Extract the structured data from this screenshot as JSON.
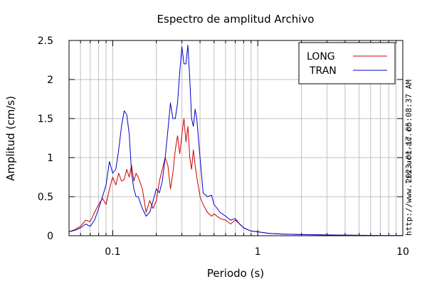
{
  "chart_data": {
    "type": "line",
    "title": "Espectro de amplitud Archivo",
    "xlabel": "Periodo (s)",
    "ylabel": "Amplitud (cm/s)",
    "x_scale": "log",
    "xlim": [
      0.05,
      10
    ],
    "ylim": [
      0,
      2.5
    ],
    "x_ticks": [
      {
        "value": 0.1,
        "label": "0.1"
      },
      {
        "value": 1,
        "label": "1"
      },
      {
        "value": 10,
        "label": "10"
      }
    ],
    "y_ticks": [
      {
        "value": 0,
        "label": "0"
      },
      {
        "value": 0.5,
        "label": "0.5"
      },
      {
        "value": 1,
        "label": "1"
      },
      {
        "value": 1.5,
        "label": "1.5"
      },
      {
        "value": 2,
        "label": "2"
      },
      {
        "value": 2.5,
        "label": "2.5"
      }
    ],
    "grid": true,
    "legend_position": "top-right",
    "series": [
      {
        "name": "LONG",
        "color": "#cc0000",
        "x": [
          0.05,
          0.055,
          0.06,
          0.065,
          0.07,
          0.075,
          0.08,
          0.085,
          0.09,
          0.095,
          0.1,
          0.105,
          0.11,
          0.115,
          0.12,
          0.125,
          0.13,
          0.135,
          0.14,
          0.145,
          0.15,
          0.16,
          0.17,
          0.18,
          0.19,
          0.2,
          0.21,
          0.22,
          0.23,
          0.24,
          0.25,
          0.26,
          0.27,
          0.28,
          0.29,
          0.3,
          0.31,
          0.32,
          0.33,
          0.34,
          0.35,
          0.36,
          0.37,
          0.38,
          0.4,
          0.42,
          0.45,
          0.48,
          0.5,
          0.55,
          0.6,
          0.65,
          0.7,
          0.75,
          0.8,
          0.9,
          1.0,
          1.2,
          1.5,
          2.0,
          3.0,
          5.0,
          7.0,
          10.0
        ],
        "y": [
          0.05,
          0.08,
          0.12,
          0.2,
          0.18,
          0.3,
          0.4,
          0.48,
          0.4,
          0.6,
          0.75,
          0.65,
          0.8,
          0.7,
          0.72,
          0.85,
          0.75,
          0.9,
          0.7,
          0.8,
          0.75,
          0.6,
          0.3,
          0.45,
          0.35,
          0.45,
          0.7,
          0.85,
          1.0,
          0.9,
          0.6,
          0.8,
          1.1,
          1.28,
          1.05,
          1.3,
          1.5,
          1.2,
          1.4,
          1.0,
          0.85,
          1.1,
          0.9,
          0.75,
          0.5,
          0.4,
          0.3,
          0.25,
          0.28,
          0.22,
          0.2,
          0.15,
          0.2,
          0.15,
          0.1,
          0.06,
          0.05,
          0.03,
          0.02,
          0.015,
          0.01,
          0.005,
          0.003,
          0.002
        ]
      },
      {
        "name": "TRAN",
        "color": "#0000cc",
        "x": [
          0.05,
          0.055,
          0.06,
          0.065,
          0.07,
          0.075,
          0.08,
          0.085,
          0.09,
          0.095,
          0.1,
          0.105,
          0.11,
          0.115,
          0.12,
          0.125,
          0.13,
          0.135,
          0.14,
          0.145,
          0.15,
          0.16,
          0.17,
          0.18,
          0.19,
          0.2,
          0.21,
          0.22,
          0.23,
          0.24,
          0.25,
          0.26,
          0.27,
          0.28,
          0.29,
          0.3,
          0.31,
          0.32,
          0.33,
          0.34,
          0.35,
          0.36,
          0.37,
          0.38,
          0.4,
          0.42,
          0.45,
          0.48,
          0.5,
          0.55,
          0.6,
          0.65,
          0.7,
          0.75,
          0.8,
          0.9,
          1.0,
          1.2,
          1.5,
          2.0,
          3.0,
          5.0,
          7.0,
          10.0
        ],
        "y": [
          0.05,
          0.07,
          0.1,
          0.15,
          0.12,
          0.2,
          0.35,
          0.5,
          0.65,
          0.95,
          0.8,
          0.85,
          1.1,
          1.4,
          1.6,
          1.55,
          1.3,
          0.8,
          0.6,
          0.5,
          0.5,
          0.35,
          0.25,
          0.3,
          0.45,
          0.6,
          0.55,
          0.7,
          1.0,
          1.35,
          1.7,
          1.5,
          1.5,
          1.7,
          2.1,
          2.42,
          2.2,
          2.2,
          2.44,
          2.0,
          1.5,
          1.4,
          1.62,
          1.5,
          1.0,
          0.55,
          0.5,
          0.52,
          0.4,
          0.3,
          0.25,
          0.2,
          0.22,
          0.15,
          0.1,
          0.06,
          0.05,
          0.03,
          0.02,
          0.015,
          0.01,
          0.005,
          0.003,
          0.002
        ]
      }
    ]
  },
  "side_text": {
    "timestamp": "2023-01-17 05:08:37 AM",
    "url": "http://www.lis.ucr.ac.cr"
  }
}
